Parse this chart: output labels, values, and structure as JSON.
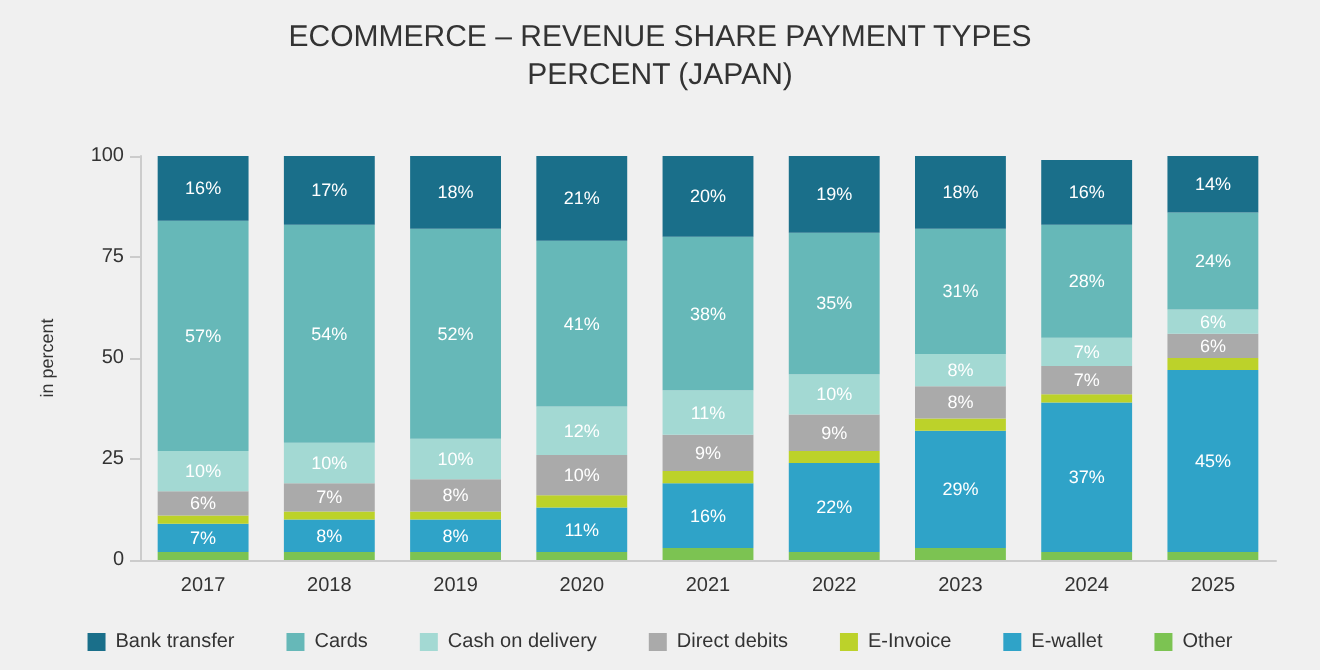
{
  "chart_data": {
    "type": "bar",
    "title": "ECOMMERCE – REVENUE SHARE PAYMENT TYPES",
    "subtitle": "PERCENT (JAPAN)",
    "ylabel": "in percent",
    "categories": [
      "2017",
      "2018",
      "2019",
      "2020",
      "2021",
      "2022",
      "2023",
      "2024",
      "2025"
    ],
    "stacked": true,
    "ylim": [
      0,
      100
    ],
    "yticks": [
      0,
      25,
      50,
      75,
      100
    ],
    "grid": false,
    "legend": "bottom",
    "series": [
      {
        "name": "Other",
        "color": "#7cc352",
        "values": [
          2,
          2,
          2,
          2,
          3,
          2,
          3,
          2,
          2
        ]
      },
      {
        "name": "E-wallet",
        "color": "#2fa3c8",
        "values": [
          7,
          8,
          8,
          11,
          16,
          22,
          29,
          37,
          45
        ],
        "value_labels": [
          "7%",
          "8%",
          "8%",
          "11%",
          "16%",
          "22%",
          "29%",
          "37%",
          "45%"
        ]
      },
      {
        "name": "E-Invoice",
        "color": "#bcd22a",
        "values": [
          2,
          2,
          2,
          3,
          3,
          3,
          3,
          2,
          3
        ]
      },
      {
        "name": "Direct debits",
        "color": "#aaaaaa",
        "values": [
          6,
          7,
          8,
          10,
          9,
          9,
          8,
          7,
          6
        ],
        "value_labels": [
          "6%",
          "7%",
          "8%",
          "10%",
          "9%",
          "9%",
          "8%",
          "7%",
          "6%"
        ]
      },
      {
        "name": "Cash on delivery",
        "color": "#a3d9d3",
        "values": [
          10,
          10,
          10,
          12,
          11,
          10,
          8,
          7,
          6
        ],
        "value_labels": [
          "10%",
          "10%",
          "10%",
          "12%",
          "11%",
          "10%",
          "8%",
          "7%",
          "6%"
        ]
      },
      {
        "name": "Cards",
        "color": "#66b8b8",
        "values": [
          57,
          54,
          52,
          41,
          38,
          35,
          31,
          28,
          24
        ],
        "value_labels": [
          "57%",
          "54%",
          "52%",
          "41%",
          "38%",
          "35%",
          "31%",
          "28%",
          "24%"
        ]
      },
      {
        "name": "Bank transfer",
        "color": "#1a6f8a",
        "values": [
          16,
          17,
          18,
          21,
          20,
          19,
          18,
          16,
          14
        ],
        "value_labels": [
          "16%",
          "17%",
          "18%",
          "21%",
          "20%",
          "19%",
          "18%",
          "16%",
          "14%"
        ]
      }
    ]
  }
}
